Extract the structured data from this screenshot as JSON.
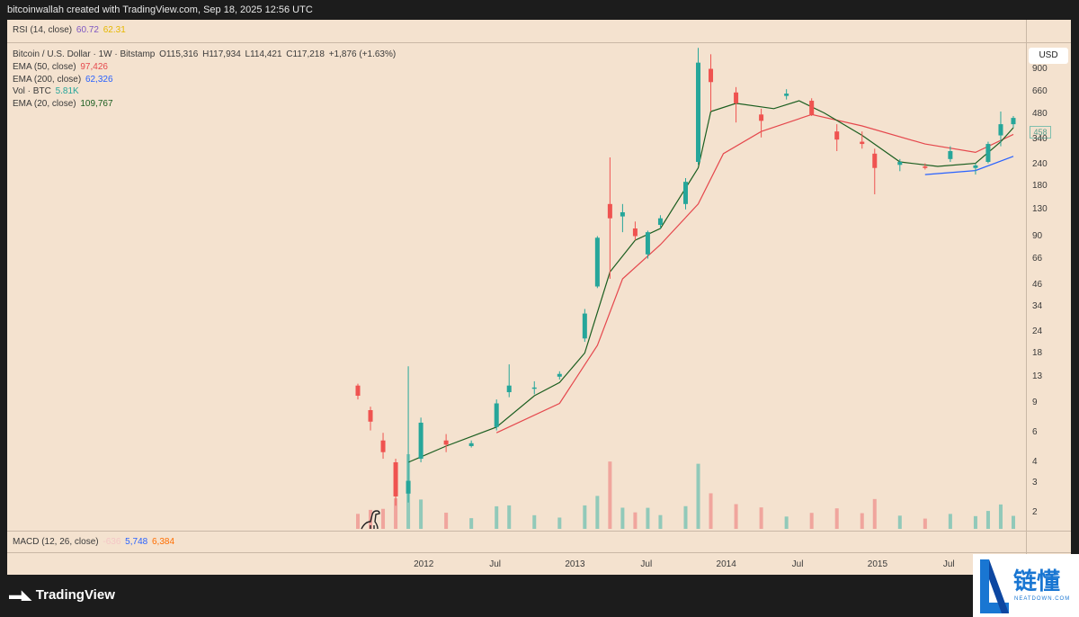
{
  "header": {
    "text": "bitcoinwallah created with TradingView.com, Sep 18, 2025 12:56 UTC"
  },
  "rsi": {
    "label": "RSI (14, close)",
    "value1": "60.72",
    "value2": "62.31",
    "color1": "#7e57c2",
    "color2": "#f5c542"
  },
  "price_legend": {
    "symbol": "Bitcoin / U.S. Dollar · 1W · Bitstamp",
    "open": "O115,316",
    "high": "H117,934",
    "low": "L114,421",
    "close": "C117,218",
    "change": "+1,876 (+1.63%)"
  },
  "indicators": [
    {
      "label": "EMA (50, close)",
      "value": "97,426",
      "color": "#e5484d"
    },
    {
      "label": "EMA (200, close)",
      "value": "62,326",
      "color": "#2962ff"
    },
    {
      "label": "Vol · BTC",
      "value": "5.81K",
      "color": "#26a69a"
    },
    {
      "label": "EMA (20, close)",
      "value": "109,767",
      "color": "#1b5e20"
    }
  ],
  "macd": {
    "label": "MACD (12, 26, close)",
    "value0": "-636",
    "value1": "5,748",
    "value2": "6,384",
    "color1": "#2962ff",
    "color2": "#ff6d00"
  },
  "currency": "USD",
  "last_price": "458",
  "y_ticks": [
    "900",
    "660",
    "480",
    "340",
    "240",
    "180",
    "130",
    "90",
    "66",
    "46",
    "34",
    "24",
    "18",
    "13",
    "9",
    "6",
    "4",
    "3",
    "2"
  ],
  "x_ticks": [
    "2012",
    "Jul",
    "2013",
    "Jul",
    "2014",
    "Jul",
    "2015",
    "Jul"
  ],
  "footer": {
    "brand": "TradingView",
    "logo_icon": "tradingview-logo-icon"
  },
  "watermark": {
    "cn": "链懂",
    "en": "NEATDOWN.COM",
    "icon": "neatdown-logo-icon"
  },
  "chart_data": {
    "type": "candlestick",
    "scale": "log",
    "ylim": [
      1.6,
      1250
    ],
    "x_range": [
      "2011-08",
      "2015-12"
    ],
    "candles": [
      {
        "t": "2011-08",
        "o": 11.5,
        "h": 11.8,
        "l": 9.5,
        "c": 10.0
      },
      {
        "t": "2011-09",
        "o": 8.2,
        "h": 8.6,
        "l": 6.2,
        "c": 7.0
      },
      {
        "t": "2011-10",
        "o": 5.4,
        "h": 6.0,
        "l": 4.2,
        "c": 4.6
      },
      {
        "t": "2011-11",
        "o": 4.0,
        "h": 4.2,
        "l": 2.2,
        "c": 2.5
      },
      {
        "t": "2011-12",
        "o": 2.6,
        "h": 15.0,
        "l": 2.3,
        "c": 3.1
      },
      {
        "t": "2012-01",
        "o": 4.2,
        "h": 7.4,
        "l": 4.0,
        "c": 6.9
      },
      {
        "t": "2012-03",
        "o": 5.4,
        "h": 5.9,
        "l": 4.6,
        "c": 5.1
      },
      {
        "t": "2012-05",
        "o": 5.0,
        "h": 5.4,
        "l": 4.9,
        "c": 5.2
      },
      {
        "t": "2012-07",
        "o": 6.5,
        "h": 9.5,
        "l": 6.2,
        "c": 9.0
      },
      {
        "t": "2012-08",
        "o": 10.5,
        "h": 15.4,
        "l": 9.8,
        "c": 11.5
      },
      {
        "t": "2012-10",
        "o": 11.0,
        "h": 12.2,
        "l": 10.2,
        "c": 11.2
      },
      {
        "t": "2012-12",
        "o": 13.0,
        "h": 14.0,
        "l": 12.5,
        "c": 13.5
      },
      {
        "t": "2013-02",
        "o": 22.0,
        "h": 33.0,
        "l": 21.0,
        "c": 31.0
      },
      {
        "t": "2013-03",
        "o": 45.0,
        "h": 90.0,
        "l": 44.0,
        "c": 88.0
      },
      {
        "t": "2013-04",
        "o": 140.0,
        "h": 266.0,
        "l": 50.0,
        "c": 115.0
      },
      {
        "t": "2013-05",
        "o": 118.0,
        "h": 140.0,
        "l": 95.0,
        "c": 125.0
      },
      {
        "t": "2013-06",
        "o": 100.0,
        "h": 110.0,
        "l": 85.0,
        "c": 90.0
      },
      {
        "t": "2013-07",
        "o": 70.0,
        "h": 97.0,
        "l": 66.0,
        "c": 95.0
      },
      {
        "t": "2013-08",
        "o": 105.0,
        "h": 120.0,
        "l": 100.0,
        "c": 115.0
      },
      {
        "t": "2013-10",
        "o": 140.0,
        "h": 200.0,
        "l": 130.0,
        "c": 190.0
      },
      {
        "t": "2013-11",
        "o": 250.0,
        "h": 1200.0,
        "l": 240.0,
        "c": 980.0
      },
      {
        "t": "2013-12",
        "o": 900.0,
        "h": 1100.0,
        "l": 500.0,
        "c": 750.0
      },
      {
        "t": "2014-02",
        "o": 650.0,
        "h": 700.0,
        "l": 430.0,
        "c": 560.0
      },
      {
        "t": "2014-04",
        "o": 480.0,
        "h": 520.0,
        "l": 350.0,
        "c": 440.0
      },
      {
        "t": "2014-06",
        "o": 620.0,
        "h": 680.0,
        "l": 590.0,
        "c": 640.0
      },
      {
        "t": "2014-08",
        "o": 580.0,
        "h": 600.0,
        "l": 470.0,
        "c": 480.0
      },
      {
        "t": "2014-10",
        "o": 380.0,
        "h": 420.0,
        "l": 290.0,
        "c": 340.0
      },
      {
        "t": "2014-12",
        "o": 330.0,
        "h": 380.0,
        "l": 300.0,
        "c": 320.0
      },
      {
        "t": "2015-01",
        "o": 280.0,
        "h": 300.0,
        "l": 160.0,
        "c": 230.0
      },
      {
        "t": "2015-03",
        "o": 240.0,
        "h": 260.0,
        "l": 220.0,
        "c": 250.0
      },
      {
        "t": "2015-05",
        "o": 235.0,
        "h": 245.0,
        "l": 225.0,
        "c": 230.0
      },
      {
        "t": "2015-07",
        "o": 260.0,
        "h": 310.0,
        "l": 250.0,
        "c": 290.0
      },
      {
        "t": "2015-09",
        "o": 230.0,
        "h": 245.0,
        "l": 210.0,
        "c": 238.0
      },
      {
        "t": "2015-10",
        "o": 250.0,
        "h": 330.0,
        "l": 245.0,
        "c": 320.0
      },
      {
        "t": "2015-11",
        "o": 360.0,
        "h": 500.0,
        "l": 310.0,
        "c": 420.0
      },
      {
        "t": "2015-12",
        "o": 420.0,
        "h": 470.0,
        "l": 400.0,
        "c": 458.0
      }
    ],
    "ema20": [
      {
        "t": "2011-12",
        "v": 4.0
      },
      {
        "t": "2012-03",
        "v": 5.0
      },
      {
        "t": "2012-07",
        "v": 6.5
      },
      {
        "t": "2012-10",
        "v": 10.0
      },
      {
        "t": "2012-12",
        "v": 12.0
      },
      {
        "t": "2013-02",
        "v": 18.0
      },
      {
        "t": "2013-04",
        "v": 55.0
      },
      {
        "t": "2013-06",
        "v": 85.0
      },
      {
        "t": "2013-08",
        "v": 100.0
      },
      {
        "t": "2013-11",
        "v": 230.0
      },
      {
        "t": "2013-12",
        "v": 500.0
      },
      {
        "t": "2014-02",
        "v": 560.0
      },
      {
        "t": "2014-05",
        "v": 520.0
      },
      {
        "t": "2014-07",
        "v": 580.0
      },
      {
        "t": "2014-09",
        "v": 490.0
      },
      {
        "t": "2014-12",
        "v": 360.0
      },
      {
        "t": "2015-03",
        "v": 250.0
      },
      {
        "t": "2015-06",
        "v": 235.0
      },
      {
        "t": "2015-09",
        "v": 245.0
      },
      {
        "t": "2015-11",
        "v": 330.0
      },
      {
        "t": "2015-12",
        "v": 400.0
      }
    ],
    "ema50": [
      {
        "t": "2012-07",
        "v": 6.0
      },
      {
        "t": "2012-12",
        "v": 9.0
      },
      {
        "t": "2013-03",
        "v": 20.0
      },
      {
        "t": "2013-05",
        "v": 50.0
      },
      {
        "t": "2013-08",
        "v": 80.0
      },
      {
        "t": "2013-11",
        "v": 140.0
      },
      {
        "t": "2014-01",
        "v": 280.0
      },
      {
        "t": "2014-04",
        "v": 380.0
      },
      {
        "t": "2014-08",
        "v": 480.0
      },
      {
        "t": "2014-12",
        "v": 410.0
      },
      {
        "t": "2015-05",
        "v": 320.0
      },
      {
        "t": "2015-09",
        "v": 285.0
      },
      {
        "t": "2015-12",
        "v": 365.0
      }
    ],
    "ema200": [
      {
        "t": "2015-05",
        "v": 210.0
      },
      {
        "t": "2015-09",
        "v": 222.0
      },
      {
        "t": "2015-12",
        "v": 270.0
      }
    ],
    "volume_note": "volume histogram along bottom of price pane"
  }
}
